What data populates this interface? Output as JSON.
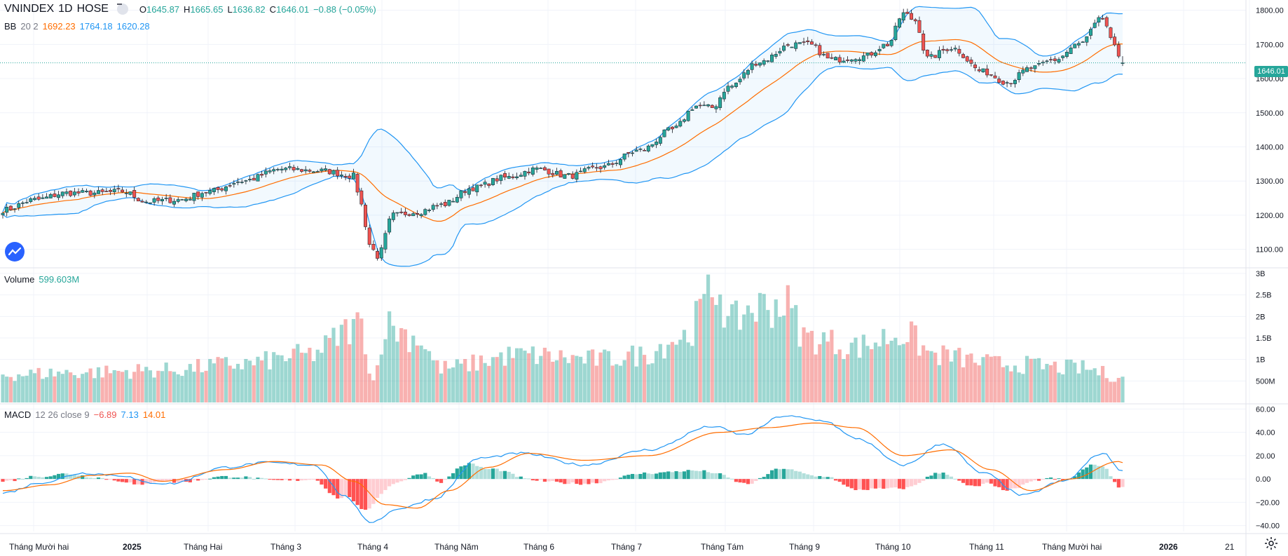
{
  "header": {
    "symbol": "VNINDEX",
    "interval": "1D",
    "exchange": "HOSE",
    "open_label": "O",
    "open": "1645.87",
    "high_label": "H",
    "high": "1665.65",
    "low_label": "L",
    "low": "1636.82",
    "close_label": "C",
    "close": "1646.01",
    "change": "−0.88 (−0.05%)"
  },
  "bb": {
    "name": "BB",
    "params": "20 2",
    "basis": "1692.23",
    "upper": "1764.18",
    "lower": "1620.28"
  },
  "volume_legend": {
    "name": "Volume",
    "value": "599.603M"
  },
  "macd_legend": {
    "name": "MACD",
    "params": "12 26 close 9",
    "hist": "−6.89",
    "macd": "7.13",
    "signal": "14.01"
  },
  "last_price_tag": "1646.01",
  "colors": {
    "up": "#26a69a",
    "down": "#ef5350",
    "bb_basis": "#ff6d00",
    "bb_band": "#2196f3",
    "grid": "#f0f3fa"
  },
  "icons": {
    "logo": "tradingview-logo-icon",
    "settings": "gear-icon",
    "collapse": "minus-icon"
  },
  "chart_data": {
    "type": "candlestick",
    "title": "VNINDEX 1D HOSE",
    "price_axis": {
      "ticks": [
        "1100.00",
        "1200.00",
        "1300.00",
        "1400.00",
        "1500.00",
        "1600.00",
        "1700.00",
        "1800.00"
      ],
      "range": [
        1050,
        1830
      ]
    },
    "volume_axis": {
      "ticks": [
        "500M",
        "1B",
        "1.5B",
        "2B",
        "2.5B",
        "3B"
      ],
      "range": [
        0,
        3000000000
      ]
    },
    "macd_axis": {
      "ticks": [
        "−40.00",
        "−20.00",
        "0.00",
        "20.00",
        "40.00",
        "60.00"
      ],
      "range": [
        -45,
        62
      ]
    },
    "time_labels": [
      "Tháng Mười hai",
      "2025",
      "Tháng Hai",
      "Tháng 3",
      "Tháng 4",
      "Tháng Năm",
      "Tháng 6",
      "Tháng 7",
      "Tháng Tám",
      "Tháng 9",
      "Tháng 10",
      "Tháng 11",
      "Tháng Mười hai",
      "2026",
      "21"
    ],
    "close_anchors": [
      [
        0,
        1215
      ],
      [
        8,
        1245
      ],
      [
        16,
        1265
      ],
      [
        24,
        1265
      ],
      [
        30,
        1270
      ],
      [
        36,
        1240
      ],
      [
        44,
        1245
      ],
      [
        52,
        1270
      ],
      [
        60,
        1300
      ],
      [
        70,
        1335
      ],
      [
        80,
        1330
      ],
      [
        88,
        1315
      ],
      [
        90,
        1230
      ],
      [
        92,
        1115
      ],
      [
        94,
        1080
      ],
      [
        98,
        1200
      ],
      [
        104,
        1210
      ],
      [
        110,
        1230
      ],
      [
        118,
        1280
      ],
      [
        126,
        1310
      ],
      [
        134,
        1335
      ],
      [
        142,
        1315
      ],
      [
        150,
        1340
      ],
      [
        160,
        1390
      ],
      [
        168,
        1450
      ],
      [
        174,
        1520
      ],
      [
        178,
        1515
      ],
      [
        182,
        1575
      ],
      [
        190,
        1650
      ],
      [
        198,
        1700
      ],
      [
        202,
        1700
      ],
      [
        208,
        1655
      ],
      [
        216,
        1665
      ],
      [
        222,
        1700
      ],
      [
        226,
        1790
      ],
      [
        229,
        1770
      ],
      [
        232,
        1660
      ],
      [
        238,
        1690
      ],
      [
        246,
        1620
      ],
      [
        252,
        1590
      ],
      [
        258,
        1630
      ],
      [
        264,
        1655
      ],
      [
        270,
        1700
      ],
      [
        276,
        1775
      ],
      [
        279,
        1690
      ],
      [
        281,
        1646.01
      ]
    ],
    "volume_anchors": [
      [
        0,
        650
      ],
      [
        20,
        700
      ],
      [
        40,
        750
      ],
      [
        60,
        900
      ],
      [
        76,
        1100
      ],
      [
        90,
        1800
      ],
      [
        93,
        500
      ],
      [
        96,
        1800
      ],
      [
        104,
        1500
      ],
      [
        110,
        800
      ],
      [
        130,
        1100
      ],
      [
        150,
        1000
      ],
      [
        160,
        1100
      ],
      [
        170,
        1500
      ],
      [
        180,
        2700
      ],
      [
        182,
        1800
      ],
      [
        188,
        2200
      ],
      [
        196,
        2300
      ],
      [
        202,
        1500
      ],
      [
        214,
        1300
      ],
      [
        226,
        1600
      ],
      [
        234,
        1100
      ],
      [
        250,
        900
      ],
      [
        270,
        800
      ],
      [
        281,
        599.6
      ]
    ],
    "macd_anchors": [
      [
        0,
        -12
      ],
      [
        10,
        -3
      ],
      [
        20,
        5
      ],
      [
        30,
        3
      ],
      [
        36,
        -3
      ],
      [
        42,
        -4
      ],
      [
        56,
        10
      ],
      [
        66,
        14
      ],
      [
        78,
        12
      ],
      [
        86,
        -15
      ],
      [
        92,
        -37
      ],
      [
        100,
        -25
      ],
      [
        108,
        -17
      ],
      [
        120,
        18
      ],
      [
        130,
        22
      ],
      [
        146,
        12
      ],
      [
        162,
        25
      ],
      [
        178,
        45
      ],
      [
        186,
        38
      ],
      [
        196,
        54
      ],
      [
        206,
        50
      ],
      [
        214,
        35
      ],
      [
        226,
        12
      ],
      [
        236,
        30
      ],
      [
        246,
        5
      ],
      [
        256,
        -14
      ],
      [
        266,
        -2
      ],
      [
        276,
        22
      ],
      [
        281,
        7.13
      ]
    ],
    "signal_anchors": [
      [
        0,
        -10
      ],
      [
        12,
        -5
      ],
      [
        22,
        3
      ],
      [
        32,
        5
      ],
      [
        40,
        -2
      ],
      [
        56,
        8
      ],
      [
        68,
        15
      ],
      [
        80,
        12
      ],
      [
        88,
        -2
      ],
      [
        96,
        -22
      ],
      [
        104,
        -25
      ],
      [
        112,
        -10
      ],
      [
        122,
        10
      ],
      [
        132,
        22
      ],
      [
        146,
        16
      ],
      [
        162,
        20
      ],
      [
        180,
        40
      ],
      [
        192,
        44
      ],
      [
        204,
        48
      ],
      [
        214,
        44
      ],
      [
        226,
        20
      ],
      [
        238,
        25
      ],
      [
        248,
        8
      ],
      [
        258,
        -10
      ],
      [
        268,
        0
      ],
      [
        280,
        15
      ],
      [
        281,
        14.01
      ]
    ]
  }
}
